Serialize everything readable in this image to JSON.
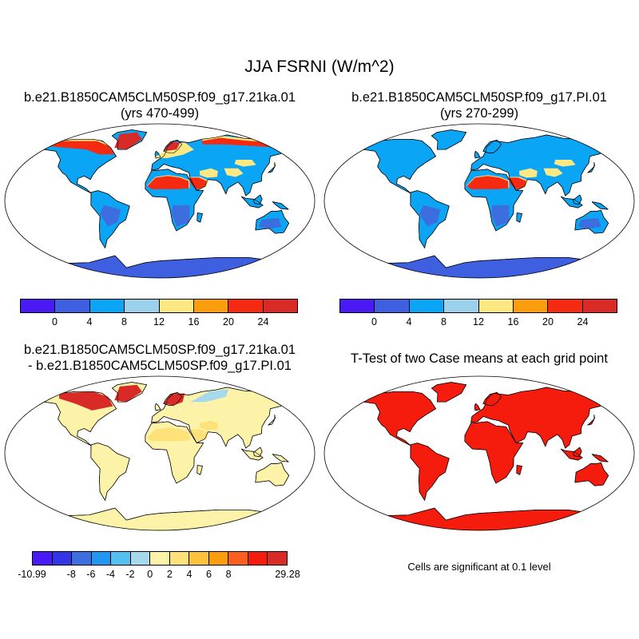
{
  "title": "JJA FSRNI (W/m^2)",
  "panels": {
    "p1": {
      "title": "b.e21.B1850CAM5CLM50SP.f09_g17.21ka.01",
      "subtitle": "(yrs 470-499)"
    },
    "p2": {
      "title": "b.e21.B1850CAM5CLM50SP.f09_g17.PI.01",
      "subtitle": "(yrs 270-299)"
    },
    "p3": {
      "title": "b.e21.B1850CAM5CLM50SP.f09_g17.21ka.01",
      "subtitle": "- b.e21.B1850CAM5CLM50SP.f09_g17.PI.01"
    },
    "p4": {
      "title": "T-Test of two Case means at each grid point",
      "note": "Cells are significant at 0.1 level"
    }
  },
  "colorbars": {
    "case": {
      "colors": [
        "#4a1af5",
        "#3d5fe0",
        "#0aa6f5",
        "#9cd1ec",
        "#fde884",
        "#fb9d0d",
        "#f52a10",
        "#d82b28"
      ],
      "labels": [
        "0",
        "4",
        "8",
        "12",
        "16",
        "20",
        "24"
      ]
    },
    "diff": {
      "colors": [
        "#4a1af5",
        "#3435e6",
        "#3d6ee0",
        "#2196f3",
        "#53c0f0",
        "#a6d9ec",
        "#fdf3a8",
        "#fde27a",
        "#fcc23c",
        "#fb9d0d",
        "#f85e1e",
        "#f61c0d",
        "#d82b28"
      ],
      "labels": [
        "-10.99",
        "-8",
        "-6",
        "-4",
        "-2",
        "0",
        "2",
        "4",
        "6",
        "8",
        "29.28"
      ]
    }
  },
  "map_colors": {
    "ocean": "#ffffff",
    "land_low": "#3d6ee0",
    "land_mid": "#0aa6f5",
    "land_warm": "#fde884",
    "land_hot": "#fb9d0d",
    "land_red": "#f52a10",
    "land_dark": "#d82b28",
    "antarctica": "#3d5fe0",
    "diff_land": "#fdf3a8",
    "diff_warm": "#fde27a",
    "diff_hot": "#d82b28",
    "sig": "#f61c0d"
  }
}
